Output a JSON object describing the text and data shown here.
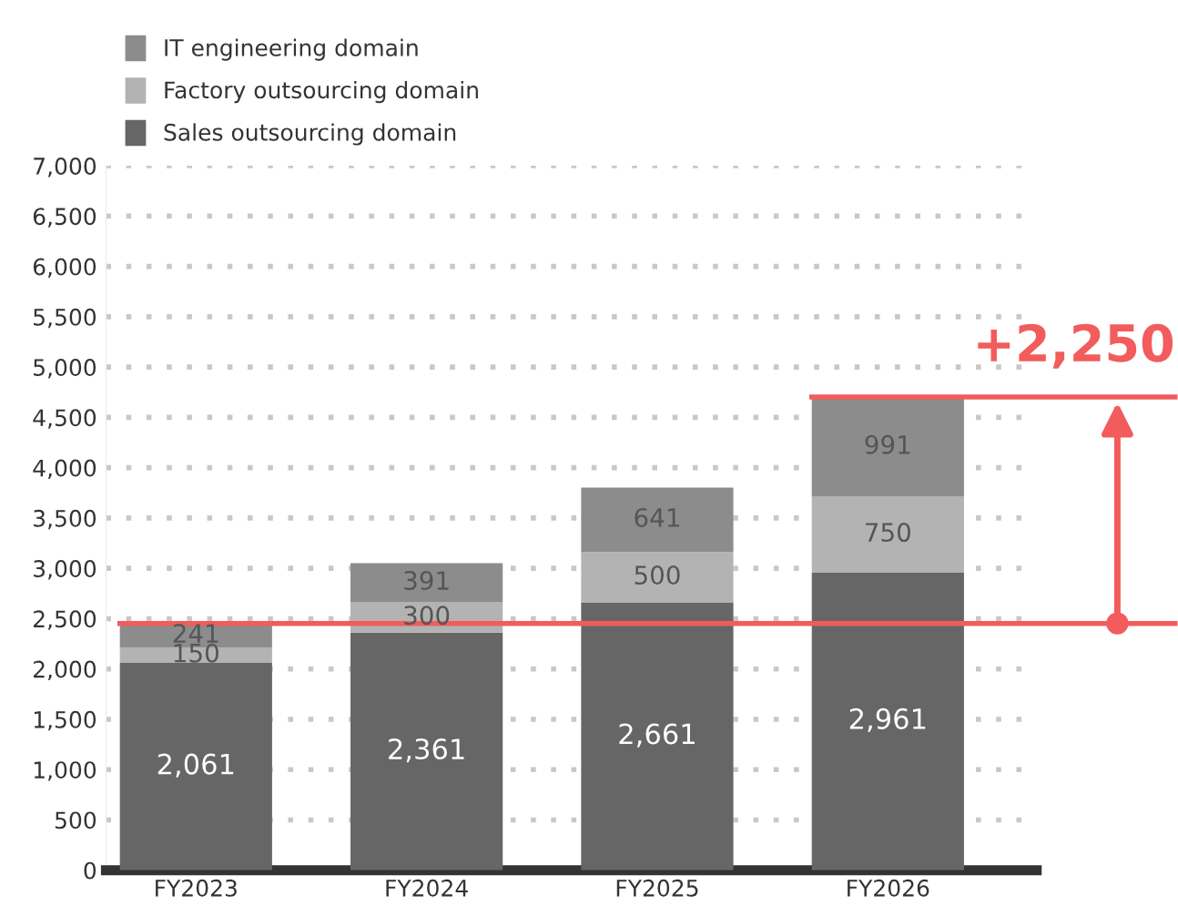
{
  "chart_data": {
    "type": "bar",
    "stacked": true,
    "categories": [
      "FY2023",
      "FY2024",
      "FY2025",
      "FY2026"
    ],
    "series": [
      {
        "name": "Sales outsourcing domain",
        "color": "#666666",
        "values": [
          2061,
          2361,
          2661,
          2961
        ],
        "value_labels": [
          "2,061",
          "2,361",
          "2,661",
          "2,961"
        ]
      },
      {
        "name": "Factory outsourcing domain",
        "color": "#b3b3b3",
        "values": [
          150,
          300,
          500,
          750
        ],
        "value_labels": [
          "150",
          "300",
          "500",
          "750"
        ]
      },
      {
        "name": "IT engineering domain",
        "color": "#8c8c8c",
        "values": [
          241,
          391,
          641,
          991
        ],
        "value_labels": [
          "241",
          "391",
          "641",
          "991"
        ]
      }
    ],
    "ylim": [
      0,
      7000
    ],
    "yticks": [
      {
        "value": 0,
        "label": "0"
      },
      {
        "value": 500,
        "label": "500"
      },
      {
        "value": 1000,
        "label": "1,000"
      },
      {
        "value": 1500,
        "label": "1,500"
      },
      {
        "value": 2000,
        "label": "2,000"
      },
      {
        "value": 2500,
        "label": "2,500"
      },
      {
        "value": 3000,
        "label": "3,000"
      },
      {
        "value": 3500,
        "label": "3,500"
      },
      {
        "value": 4000,
        "label": "4,000"
      },
      {
        "value": 4500,
        "label": "4,500"
      },
      {
        "value": 5000,
        "label": "5,000"
      },
      {
        "value": 5500,
        "label": "5,500"
      },
      {
        "value": 6000,
        "label": "6,000"
      },
      {
        "value": 6500,
        "label": "6,500"
      },
      {
        "value": 7000,
        "label": "7,000"
      }
    ],
    "grid": "y",
    "legend": "top left",
    "ref_lines": [
      {
        "axis": "y",
        "value": 2452,
        "label": null,
        "color": "#f25c5c"
      },
      {
        "axis": "y",
        "value": 4702,
        "label": null,
        "color": "#f25c5c"
      }
    ],
    "annotations": [
      "+2,250"
    ]
  }
}
